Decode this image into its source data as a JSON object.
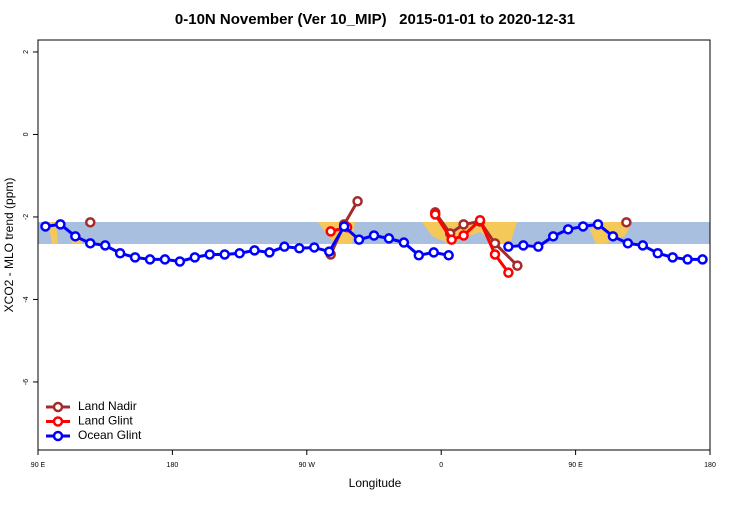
{
  "chart_data": {
    "type": "line",
    "title": "0-10N November (Ver 10_MIP)   2015-01-01 to 2020-12-31",
    "x_label": "Longitude",
    "y_label": "XCO2 - MLO trend (ppm)",
    "xlim": [
      90,
      540
    ],
    "xticks": [
      {
        "value": 90,
        "label": "90 E"
      },
      180,
      {
        "value": 270,
        "label": "90 W"
      },
      {
        "value": 360,
        "label": "0"
      },
      {
        "value": 450,
        "label": "90 E"
      },
      {
        "value": 540,
        "label": "180"
      }
    ],
    "ylim": [
      -7.65,
      2.29
    ],
    "yticks": [
      2,
      0,
      -2,
      -4,
      -6
    ],
    "legend": "bottom-left",
    "series": [
      {
        "name": "Land Nadir",
        "color": "#a52a2a",
        "x": [
          125,
          135,
          286,
          295,
          304,
          315,
          356,
          366,
          375,
          386,
          396,
          411,
          420,
          484
        ],
        "values": [
          -2.13,
          null,
          -2.91,
          -2.18,
          -1.62,
          null,
          -1.89,
          -2.4,
          -2.18,
          -2.11,
          -2.64,
          -3.18,
          null,
          -2.13
        ]
      },
      {
        "name": "Land Glint",
        "color": "#ff0000",
        "x": [
          286,
          297,
          320,
          356,
          367,
          375,
          386,
          396,
          405
        ],
        "values": [
          -2.35,
          -2.25,
          null,
          -1.94,
          -2.55,
          -2.45,
          -2.08,
          -2.91,
          -3.35
        ]
      },
      {
        "name": "Ocean Glint",
        "color": "#0000ff",
        "x": [
          95,
          105,
          115,
          125,
          135,
          145,
          155,
          165,
          175,
          185,
          195,
          205,
          215,
          225,
          235,
          245,
          255,
          265,
          275,
          285,
          295,
          305,
          315,
          325,
          335,
          345,
          355,
          365,
          385,
          405,
          415,
          425,
          435,
          445,
          455,
          465,
          475,
          485,
          495,
          505,
          515,
          525,
          535
        ],
        "values": [
          -2.23,
          -2.18,
          -2.47,
          -2.64,
          -2.69,
          -2.88,
          -2.98,
          -3.03,
          -3.03,
          -3.08,
          -2.98,
          -2.91,
          -2.91,
          -2.88,
          -2.81,
          -2.86,
          -2.72,
          -2.76,
          -2.74,
          -2.84,
          -2.23,
          -2.55,
          -2.45,
          -2.52,
          -2.62,
          -2.93,
          -2.86,
          -2.93,
          null,
          -2.72,
          -2.69,
          -2.72,
          -2.47,
          -2.3,
          -2.23,
          -2.18,
          -2.47,
          -2.64,
          -2.69,
          -2.88,
          -2.98,
          -3.03,
          -3.03
        ]
      }
    ]
  }
}
